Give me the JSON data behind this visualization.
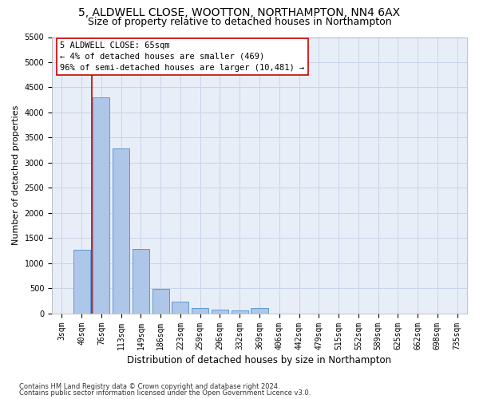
{
  "title1": "5, ALDWELL CLOSE, WOOTTON, NORTHAMPTON, NN4 6AX",
  "title2": "Size of property relative to detached houses in Northampton",
  "xlabel": "Distribution of detached houses by size in Northampton",
  "ylabel": "Number of detached properties",
  "categories": [
    "3sqm",
    "40sqm",
    "76sqm",
    "113sqm",
    "149sqm",
    "186sqm",
    "223sqm",
    "259sqm",
    "296sqm",
    "332sqm",
    "369sqm",
    "406sqm",
    "442sqm",
    "479sqm",
    "515sqm",
    "552sqm",
    "589sqm",
    "625sqm",
    "662sqm",
    "698sqm",
    "735sqm"
  ],
  "values": [
    0,
    1270,
    4300,
    3280,
    1280,
    480,
    230,
    100,
    65,
    55,
    100,
    0,
    0,
    0,
    0,
    0,
    0,
    0,
    0,
    0,
    0
  ],
  "bar_color": "#aec6e8",
  "bar_edge_color": "#5b9bd5",
  "vline_color": "#cc0000",
  "vline_x": 1.5,
  "annotation_line1": "5 ALDWELL CLOSE: 65sqm",
  "annotation_line2": "← 4% of detached houses are smaller (469)",
  "annotation_line3": "96% of semi-detached houses are larger (10,481) →",
  "annotation_box_facecolor": "#ffffff",
  "annotation_box_edgecolor": "#cc0000",
  "ylim_max": 5500,
  "yticks": [
    0,
    500,
    1000,
    1500,
    2000,
    2500,
    3000,
    3500,
    4000,
    4500,
    5000,
    5500
  ],
  "grid_color": "#c8d4e8",
  "bg_color": "#e8eef8",
  "footnote1": "Contains HM Land Registry data © Crown copyright and database right 2024.",
  "footnote2": "Contains public sector information licensed under the Open Government Licence v3.0.",
  "title1_fontsize": 10,
  "title2_fontsize": 9,
  "xlabel_fontsize": 8.5,
  "ylabel_fontsize": 8,
  "tick_fontsize": 7,
  "annotation_fontsize": 7.5,
  "footnote_fontsize": 6
}
